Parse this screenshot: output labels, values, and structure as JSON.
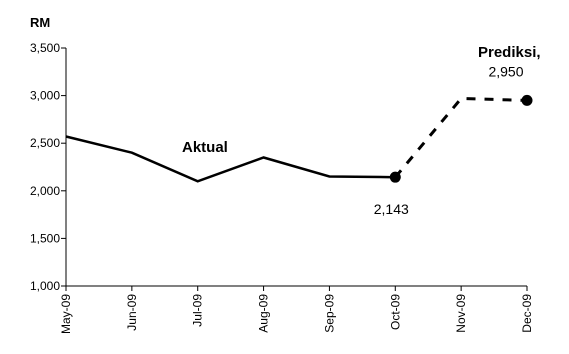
{
  "chart_data": {
    "type": "line",
    "ylabel": "RM",
    "ylim": [
      1000,
      3500
    ],
    "yticks": [
      "1,000",
      "1,500",
      "2,000",
      "2,500",
      "3,000",
      "3,500"
    ],
    "categories": [
      "May-09",
      "Jun-09",
      "Jul-09",
      "Aug-09",
      "Sep-09",
      "Oct-09",
      "Nov-09",
      "Dec-09"
    ],
    "series": [
      {
        "name": "Aktual",
        "style": "solid",
        "values": [
          2570,
          2400,
          2100,
          2350,
          2150,
          2143,
          null,
          null
        ]
      },
      {
        "name": "Prediksi,",
        "style": "dashed",
        "values": [
          null,
          null,
          null,
          null,
          null,
          2143,
          2970,
          2950
        ]
      }
    ],
    "point_labels": [
      {
        "category": "Oct-09",
        "text": "2,143"
      },
      {
        "category": "Dec-09",
        "text": "2,950"
      }
    ],
    "grid": false,
    "colors": {
      "line": "#000000",
      "background": "#ffffff"
    }
  }
}
